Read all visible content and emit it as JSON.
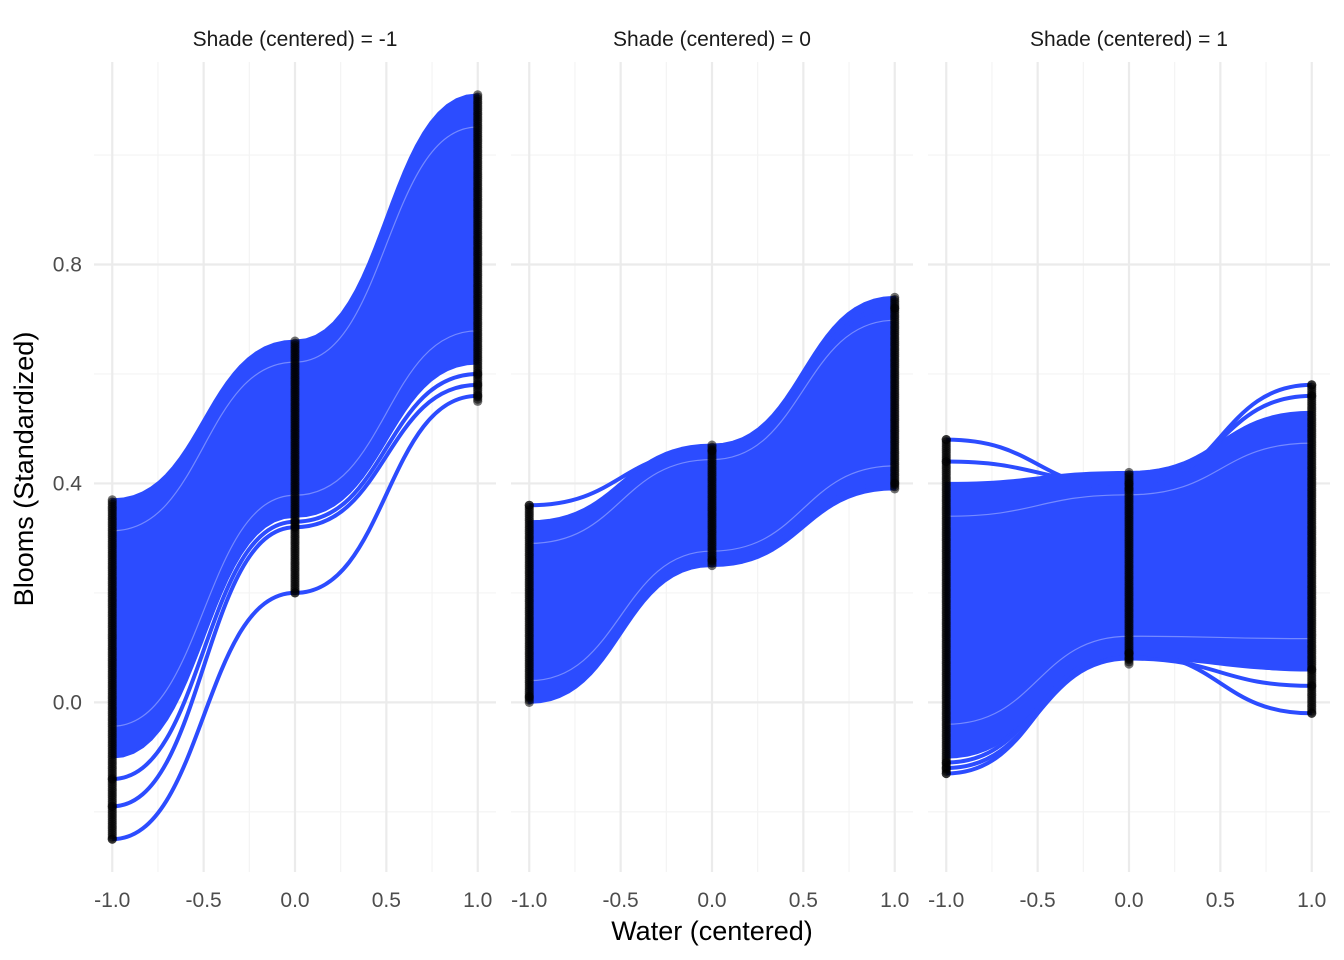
{
  "chart_data": {
    "type": "line",
    "facet_variable": "Shade (centered)",
    "facets": [
      {
        "label": "Shade (centered) = -1",
        "shade": -1,
        "x": [
          -1,
          0,
          1
        ],
        "band_upper": [
          0.37,
          0.66,
          1.11
        ],
        "band_lower": [
          -0.1,
          0.34,
          0.62
        ],
        "outlier_curves": [
          [
            -0.25,
            0.2,
            0.56
          ],
          [
            -0.19,
            0.32,
            0.58
          ],
          [
            -0.14,
            0.33,
            0.6
          ]
        ],
        "points": [
          {
            "x": -1,
            "ymin": -0.25,
            "ymax": 0.37
          },
          {
            "x": 0,
            "ymin": 0.2,
            "ymax": 0.66
          },
          {
            "x": 1,
            "ymin": 0.55,
            "ymax": 1.11
          }
        ]
      },
      {
        "label": "Shade (centered) = 0",
        "shade": 0,
        "x": [
          -1,
          0,
          1
        ],
        "band_upper": [
          0.33,
          0.47,
          0.74
        ],
        "band_lower": [
          0.0,
          0.25,
          0.39
        ],
        "outlier_curves": [
          [
            0.36,
            0.46,
            0.72
          ],
          [
            0.01,
            0.26,
            0.4
          ]
        ],
        "points": [
          {
            "x": -1,
            "ymin": 0.0,
            "ymax": 0.36
          },
          {
            "x": 0,
            "ymin": 0.25,
            "ymax": 0.47
          },
          {
            "x": 1,
            "ymin": 0.39,
            "ymax": 0.74
          }
        ]
      },
      {
        "label": "Shade (centered) = 1",
        "shade": 1,
        "x": [
          -1,
          0,
          1
        ],
        "band_upper": [
          0.4,
          0.42,
          0.53
        ],
        "band_lower": [
          -0.1,
          0.08,
          0.06
        ],
        "outlier_curves": [
          [
            0.48,
            0.39,
            0.58
          ],
          [
            0.44,
            0.4,
            0.56
          ],
          [
            -0.13,
            0.09,
            -0.02
          ],
          [
            -0.12,
            0.08,
            0.03
          ],
          [
            -0.11,
            0.09,
            0.06
          ]
        ],
        "points": [
          {
            "x": -1,
            "ymin": -0.13,
            "ymax": 0.48
          },
          {
            "x": 0,
            "ymin": 0.07,
            "ymax": 0.42
          },
          {
            "x": 1,
            "ymin": -0.02,
            "ymax": 0.58
          }
        ]
      }
    ],
    "xlabel": "Water (centered)",
    "ylabel": "Blooms (Standardized)",
    "xlim": [
      -1.1,
      1.1
    ],
    "ylim": [
      -0.31,
      1.17
    ],
    "x_ticks": [
      -1.0,
      -0.5,
      0.0,
      0.5,
      1.0
    ],
    "x_tick_labels": [
      "-1.0",
      "-0.5",
      "0.0",
      "0.5",
      "1.0"
    ],
    "y_ticks": [
      0.0,
      0.4,
      0.8
    ],
    "y_tick_labels": [
      "0.0",
      "0.4",
      "0.8"
    ],
    "x_minor": [
      -0.75,
      -0.25,
      0.25,
      0.75
    ],
    "y_minor": [
      -0.2,
      0.2,
      0.6,
      1.0
    ],
    "grid": true,
    "legend": "none",
    "colors": {
      "line": "#2c4cff",
      "point": "#000000",
      "background": "#ffffff",
      "grid_major": "#ebebeb",
      "grid_minor": "#f3f3f3"
    }
  }
}
